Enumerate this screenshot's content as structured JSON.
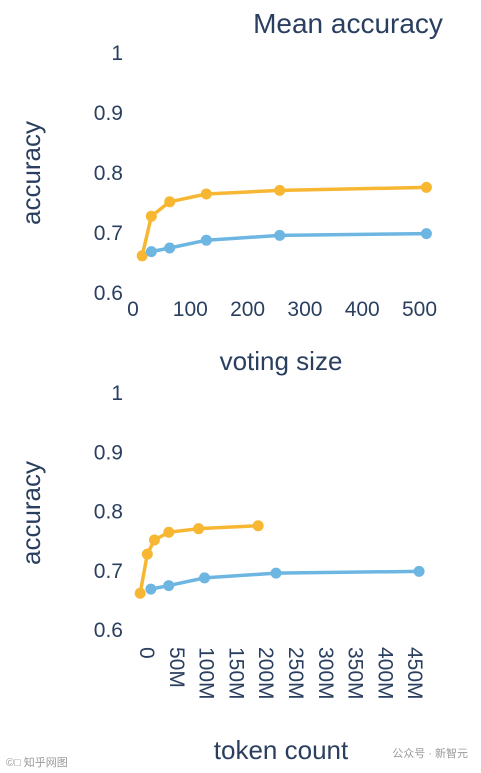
{
  "title": "Mean accuracy",
  "chart_data": [
    {
      "type": "line",
      "xlabel": "voting size",
      "ylabel": "accuracy",
      "xlim": [
        0,
        520
      ],
      "ylim": [
        0.6,
        1.0
      ],
      "x_ticks": [
        "0",
        "100",
        "200",
        "300",
        "400",
        "500"
      ],
      "y_ticks": [
        "0.6",
        "0.7",
        "0.8",
        "0.9",
        "1"
      ],
      "grid": false,
      "series": [
        {
          "color": "#f7b733",
          "x": [
            16,
            32,
            64,
            128,
            256,
            512
          ],
          "y": [
            0.662,
            0.728,
            0.752,
            0.765,
            0.771,
            0.776
          ]
        },
        {
          "color": "#6db6e2",
          "x": [
            32,
            64,
            128,
            256,
            512
          ],
          "y": [
            0.669,
            0.675,
            0.688,
            0.696,
            0.699
          ]
        }
      ]
    },
    {
      "type": "line",
      "xlabel": "token count",
      "ylabel": "accuracy",
      "xlim": [
        0,
        500
      ],
      "ylim": [
        0.6,
        1.0
      ],
      "x_ticks": [
        "0",
        "50M",
        "100M",
        "150M",
        "200M",
        "250M",
        "300M",
        "350M",
        "400M",
        "450M"
      ],
      "y_ticks": [
        "0.6",
        "0.7",
        "0.8",
        "0.9",
        "1"
      ],
      "grid": false,
      "series": [
        {
          "color": "#f7b733",
          "x": [
            12,
            24,
            36,
            60,
            110,
            210
          ],
          "y": [
            0.662,
            0.728,
            0.752,
            0.765,
            0.771,
            0.776
          ]
        },
        {
          "color": "#6db6e2",
          "x": [
            30,
            60,
            120,
            240,
            480
          ],
          "y": [
            0.669,
            0.675,
            0.688,
            0.696,
            0.699
          ]
        }
      ]
    }
  ],
  "watermark_left": "©□ 知乎网图",
  "watermark_right": "公众号 · 新智元"
}
